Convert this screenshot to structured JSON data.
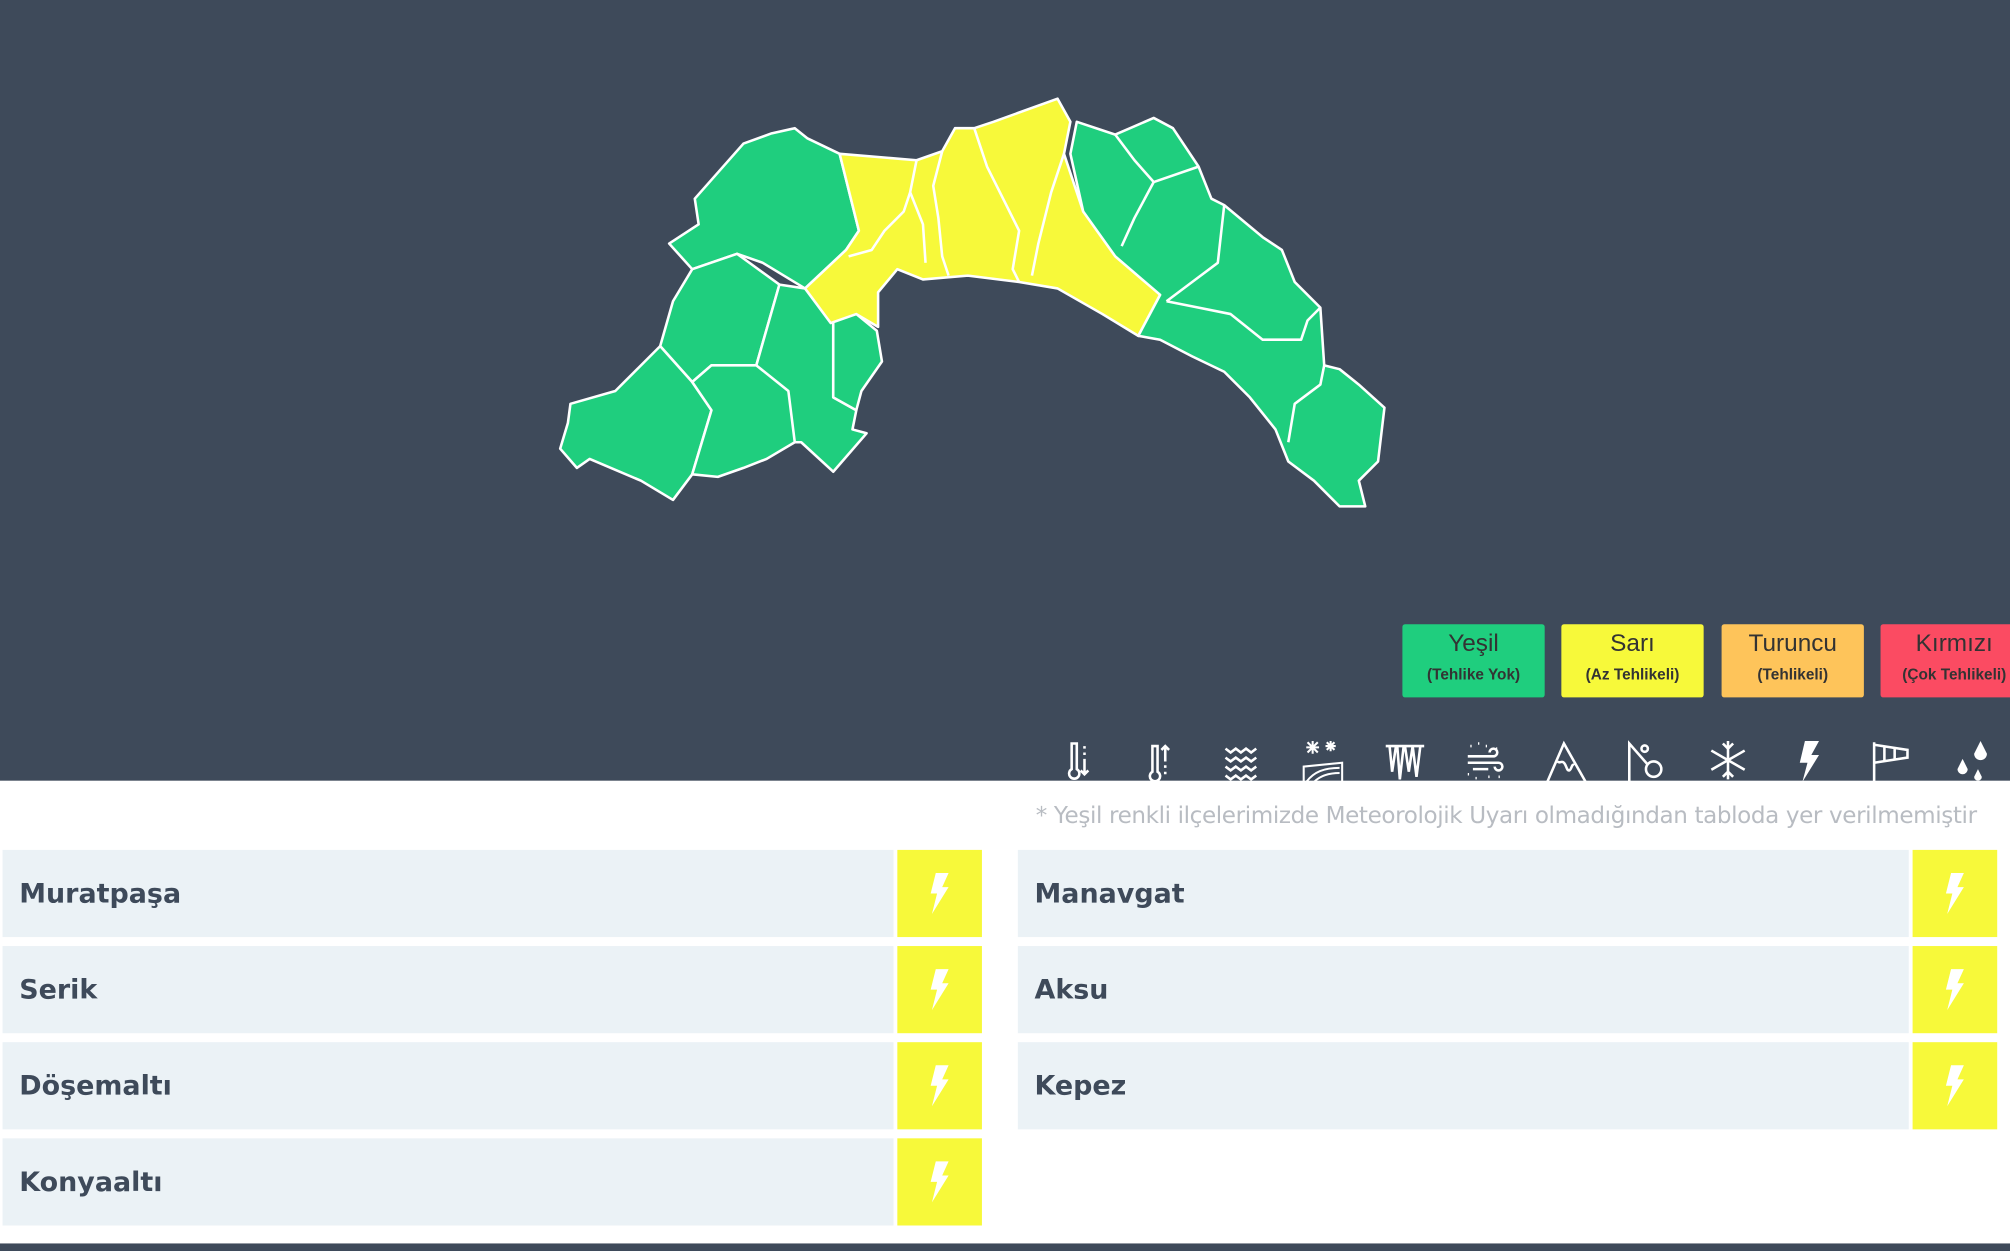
{
  "colors": {
    "background": "#3e4a5a",
    "green": "#1fce7e",
    "yellow": "#f7f93a",
    "orange": "#fec45a",
    "red": "#fb4b62",
    "row_bg": "#ebf2f6"
  },
  "legend": [
    {
      "label": "Yeşil",
      "sub": "(Tehlike Yok)",
      "color": "#1fce7e"
    },
    {
      "label": "Sarı",
      "sub": "(Az Tehlikeli)",
      "color": "#f7f93a"
    },
    {
      "label": "Turuncu",
      "sub": "(Tehlikeli)",
      "color": "#fec45a"
    },
    {
      "label": "Kırmızı",
      "sub": "(Çok Tehlikeli)",
      "color": "#fb4b62"
    }
  ],
  "hazard_icons": [
    "low-temperature-icon",
    "high-temperature-icon",
    "fog-icon",
    "snow-avalanche-icon",
    "frost-icon",
    "dust-storm-icon",
    "hot-mountain-icon",
    "avalanche-icon",
    "snow-icon",
    "thunderstorm-icon",
    "wind-icon",
    "rain-icon"
  ],
  "note": "* Yeşil renkli ilçelerimizde Meteorolojik Uyarı olmadığından tabloda yer verilmemiştir",
  "warnings_left": [
    {
      "district": "Muratpaşa",
      "hazard": "thunderstorm-icon",
      "level": "Sarı"
    },
    {
      "district": "Serik",
      "hazard": "thunderstorm-icon",
      "level": "Sarı"
    },
    {
      "district": "Döşemaltı",
      "hazard": "thunderstorm-icon",
      "level": "Sarı"
    },
    {
      "district": "Konyaaltı",
      "hazard": "thunderstorm-icon",
      "level": "Sarı"
    }
  ],
  "warnings_right": [
    {
      "district": "Manavgat",
      "hazard": "thunderstorm-icon",
      "level": "Sarı"
    },
    {
      "district": "Aksu",
      "hazard": "thunderstorm-icon",
      "level": "Sarı"
    },
    {
      "district": "Kepez",
      "hazard": "thunderstorm-icon",
      "level": "Sarı"
    }
  ]
}
